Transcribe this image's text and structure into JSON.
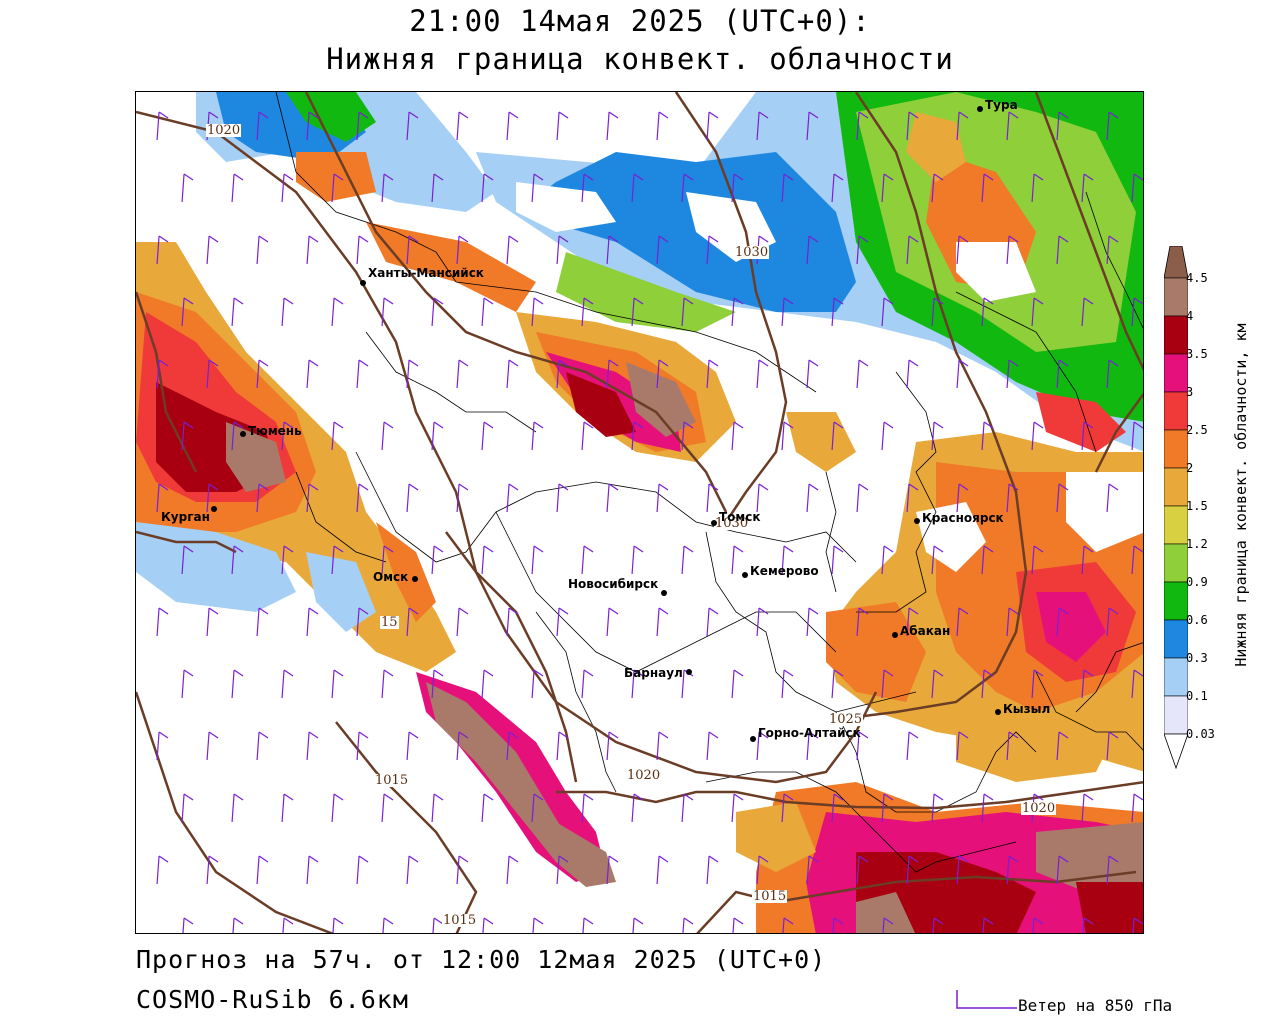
{
  "header": {
    "title": "21:00 14мая 2025 (UTC+0):",
    "subtitle": "Нижняя граница конвект. облачности"
  },
  "footer": {
    "forecast": "Прогноз на 57ч. от 12:00 12мая 2025 (UTC+0)",
    "model": "COSMO-RuSib 6.6км",
    "wind_legend": "Ветер на 850 гПа"
  },
  "colorbar": {
    "title": "Нижняя граница конвект. облачности, км",
    "ticks": [
      "4.5",
      "4",
      "3.5",
      "3",
      "2.5",
      "2",
      "1.5",
      "1.2",
      "0.9",
      "0.6",
      "0.3",
      "0.1",
      "0.03"
    ],
    "colors": [
      "#8b5e4a",
      "#a97a6a",
      "#a80010",
      "#e6107a",
      "#f03a3a",
      "#f07a28",
      "#e8a83a",
      "#d8d040",
      "#8ecf3a",
      "#10b810",
      "#1e88e0",
      "#a6cff5",
      "#e6e6fa"
    ]
  },
  "cities": [
    {
      "name": "Тура"
    },
    {
      "name": "Ханты-Мансийск"
    },
    {
      "name": "Тюмень"
    },
    {
      "name": "Курган"
    },
    {
      "name": "Омск"
    },
    {
      "name": "Новосибирск"
    },
    {
      "name": "Томск"
    },
    {
      "name": "Кемерово"
    },
    {
      "name": "Красноярск"
    },
    {
      "name": "Абакан"
    },
    {
      "name": "Барнаул"
    },
    {
      "name": "Горно-Алтайск"
    },
    {
      "name": "Кызыл"
    }
  ],
  "isobars": [
    "1020",
    "1030",
    "1030",
    "1025",
    "1020",
    "1020",
    "1015",
    "1015",
    "1015",
    "15"
  ]
}
